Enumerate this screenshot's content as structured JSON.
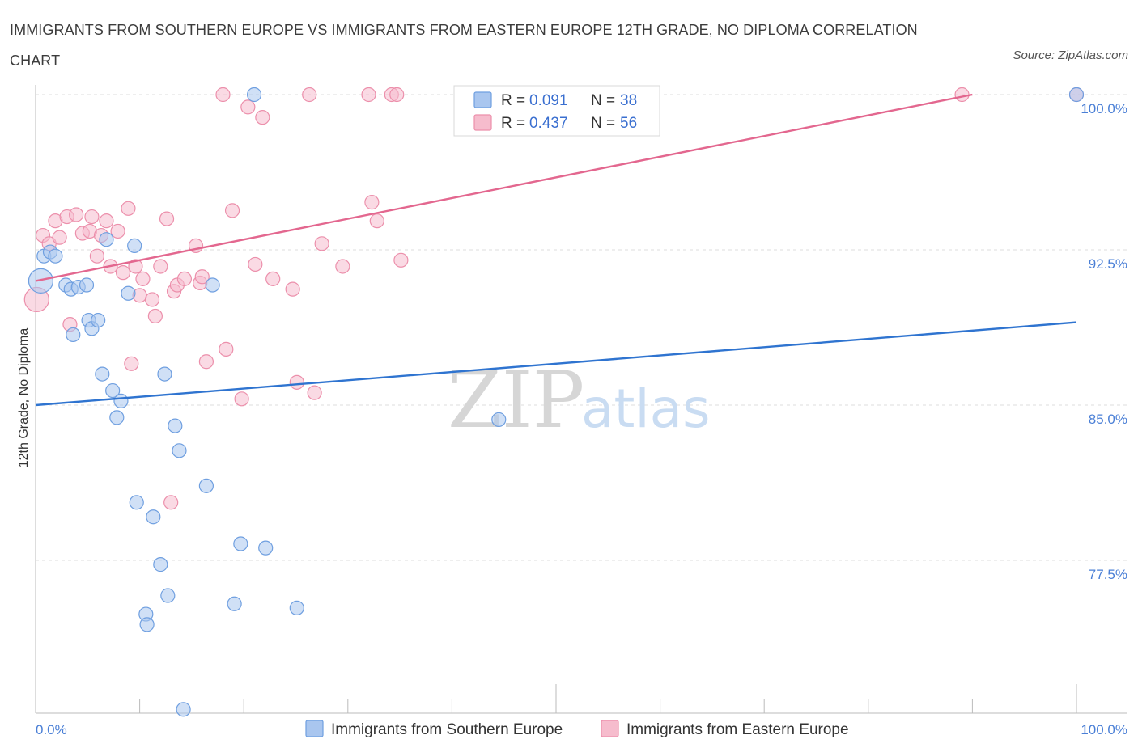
{
  "title": "IMMIGRANTS FROM SOUTHERN EUROPE VS IMMIGRANTS FROM EASTERN EUROPE 12TH GRADE, NO DIPLOMA CORRELATION CHART",
  "source": "Source: ZipAtlas.com",
  "watermark": {
    "zip": "ZIP",
    "atlas": "atlas"
  },
  "legend": {
    "blue": {
      "r_label": "R = ",
      "r_value": "0.091",
      "n_label": "N = ",
      "n_value": "38"
    },
    "pink": {
      "r_label": "R = ",
      "r_value": "0.437",
      "n_label": "N = ",
      "n_value": "56"
    }
  },
  "colors": {
    "blue": "#a9c6ef",
    "blue_stroke": "#6f9fe0",
    "blue_line": "#2f74d0",
    "pink": "#f6bccd",
    "pink_stroke": "#ec8fab",
    "pink_line": "#e3678f",
    "grid": "#dddddd"
  },
  "chart_data": {
    "type": "scatter",
    "title": "IMMIGRANTS FROM SOUTHERN EUROPE VS IMMIGRANTS FROM EASTERN EUROPE 12TH GRADE, NO DIPLOMA CORRELATION CHART",
    "xlabel": "",
    "ylabel": "12th Grade, No Diploma",
    "xlim": [
      0,
      100
    ],
    "ylim": [
      70.0,
      100.0
    ],
    "x_tick_labels": {
      "left": "0.0%",
      "right": "100.0%"
    },
    "y_ticks": [
      {
        "value": 100.0,
        "label": "100.0%"
      },
      {
        "value": 92.5,
        "label": "92.5%"
      },
      {
        "value": 85.0,
        "label": "85.0%"
      },
      {
        "value": 77.5,
        "label": "77.5%"
      }
    ],
    "series": [
      {
        "name": "Immigrants from Southern Europe",
        "color": "blue",
        "trend": {
          "x0": 0,
          "y0": 85.0,
          "x1": 100,
          "y1": 89.0
        },
        "points": [
          {
            "x": 0.5,
            "y": 91.0,
            "big": true
          },
          {
            "x": 0.8,
            "y": 92.2
          },
          {
            "x": 1.4,
            "y": 92.4
          },
          {
            "x": 1.9,
            "y": 92.2
          },
          {
            "x": 2.9,
            "y": 90.8
          },
          {
            "x": 3.6,
            "y": 88.4
          },
          {
            "x": 3.4,
            "y": 90.6
          },
          {
            "x": 4.1,
            "y": 90.7
          },
          {
            "x": 4.9,
            "y": 90.8
          },
          {
            "x": 5.1,
            "y": 89.1
          },
          {
            "x": 5.4,
            "y": 88.7
          },
          {
            "x": 6.0,
            "y": 89.1
          },
          {
            "x": 6.4,
            "y": 86.5
          },
          {
            "x": 6.8,
            "y": 93.0
          },
          {
            "x": 7.4,
            "y": 85.7
          },
          {
            "x": 7.8,
            "y": 84.4
          },
          {
            "x": 8.2,
            "y": 85.2
          },
          {
            "x": 8.9,
            "y": 90.4
          },
          {
            "x": 9.5,
            "y": 92.7
          },
          {
            "x": 9.7,
            "y": 80.3
          },
          {
            "x": 10.6,
            "y": 74.9
          },
          {
            "x": 10.7,
            "y": 74.4
          },
          {
            "x": 11.3,
            "y": 79.6
          },
          {
            "x": 12.0,
            "y": 77.3
          },
          {
            "x": 12.4,
            "y": 86.5
          },
          {
            "x": 12.7,
            "y": 75.8
          },
          {
            "x": 13.4,
            "y": 84.0
          },
          {
            "x": 13.8,
            "y": 82.8
          },
          {
            "x": 14.2,
            "y": 70.3
          },
          {
            "x": 16.4,
            "y": 81.1
          },
          {
            "x": 17.0,
            "y": 90.8
          },
          {
            "x": 19.1,
            "y": 75.4
          },
          {
            "x": 19.7,
            "y": 78.3
          },
          {
            "x": 21.0,
            "y": 100.0
          },
          {
            "x": 22.1,
            "y": 78.1
          },
          {
            "x": 25.1,
            "y": 75.2
          },
          {
            "x": 44.5,
            "y": 84.3
          },
          {
            "x": 100.0,
            "y": 100.0
          }
        ]
      },
      {
        "name": "Immigrants from Eastern Europe",
        "color": "pink",
        "trend": {
          "x0": 0,
          "y0": 91.0,
          "x1": 90.0,
          "y1": 100.0
        },
        "points": [
          {
            "x": 0.1,
            "y": 90.1,
            "big": true
          },
          {
            "x": 0.7,
            "y": 93.2
          },
          {
            "x": 1.3,
            "y": 92.8
          },
          {
            "x": 1.9,
            "y": 93.9
          },
          {
            "x": 2.3,
            "y": 93.1
          },
          {
            "x": 3.0,
            "y": 94.1
          },
          {
            "x": 3.3,
            "y": 88.9
          },
          {
            "x": 3.9,
            "y": 94.2
          },
          {
            "x": 4.5,
            "y": 93.3
          },
          {
            "x": 5.2,
            "y": 93.4
          },
          {
            "x": 5.4,
            "y": 94.1
          },
          {
            "x": 5.9,
            "y": 92.2
          },
          {
            "x": 6.3,
            "y": 93.2
          },
          {
            "x": 6.8,
            "y": 93.9
          },
          {
            "x": 7.2,
            "y": 91.7
          },
          {
            "x": 7.9,
            "y": 93.4
          },
          {
            "x": 8.4,
            "y": 91.4
          },
          {
            "x": 8.9,
            "y": 94.5
          },
          {
            "x": 9.2,
            "y": 87.0
          },
          {
            "x": 9.6,
            "y": 91.7
          },
          {
            "x": 10.0,
            "y": 90.3
          },
          {
            "x": 10.3,
            "y": 91.1
          },
          {
            "x": 11.2,
            "y": 90.1
          },
          {
            "x": 11.5,
            "y": 89.3
          },
          {
            "x": 12.0,
            "y": 91.7
          },
          {
            "x": 12.6,
            "y": 94.0
          },
          {
            "x": 13.0,
            "y": 80.3
          },
          {
            "x": 13.3,
            "y": 90.5
          },
          {
            "x": 13.6,
            "y": 90.8
          },
          {
            "x": 14.3,
            "y": 91.1
          },
          {
            "x": 15.4,
            "y": 92.7
          },
          {
            "x": 15.8,
            "y": 90.9
          },
          {
            "x": 16.0,
            "y": 91.2
          },
          {
            "x": 16.4,
            "y": 87.1
          },
          {
            "x": 18.0,
            "y": 100.0
          },
          {
            "x": 18.3,
            "y": 87.7
          },
          {
            "x": 18.9,
            "y": 94.4
          },
          {
            "x": 19.8,
            "y": 85.3
          },
          {
            "x": 20.4,
            "y": 99.4
          },
          {
            "x": 21.1,
            "y": 91.8
          },
          {
            "x": 21.8,
            "y": 98.9
          },
          {
            "x": 22.8,
            "y": 91.1
          },
          {
            "x": 24.7,
            "y": 90.6
          },
          {
            "x": 25.1,
            "y": 86.1
          },
          {
            "x": 26.3,
            "y": 100.0
          },
          {
            "x": 26.8,
            "y": 85.6
          },
          {
            "x": 27.5,
            "y": 92.8
          },
          {
            "x": 29.5,
            "y": 91.7
          },
          {
            "x": 32.0,
            "y": 100.0
          },
          {
            "x": 32.3,
            "y": 94.8
          },
          {
            "x": 32.8,
            "y": 93.9
          },
          {
            "x": 34.2,
            "y": 100.0
          },
          {
            "x": 34.7,
            "y": 100.0
          },
          {
            "x": 35.1,
            "y": 92.0
          },
          {
            "x": 89.0,
            "y": 100.0
          },
          {
            "x": 100.0,
            "y": 100.0
          }
        ]
      }
    ]
  }
}
